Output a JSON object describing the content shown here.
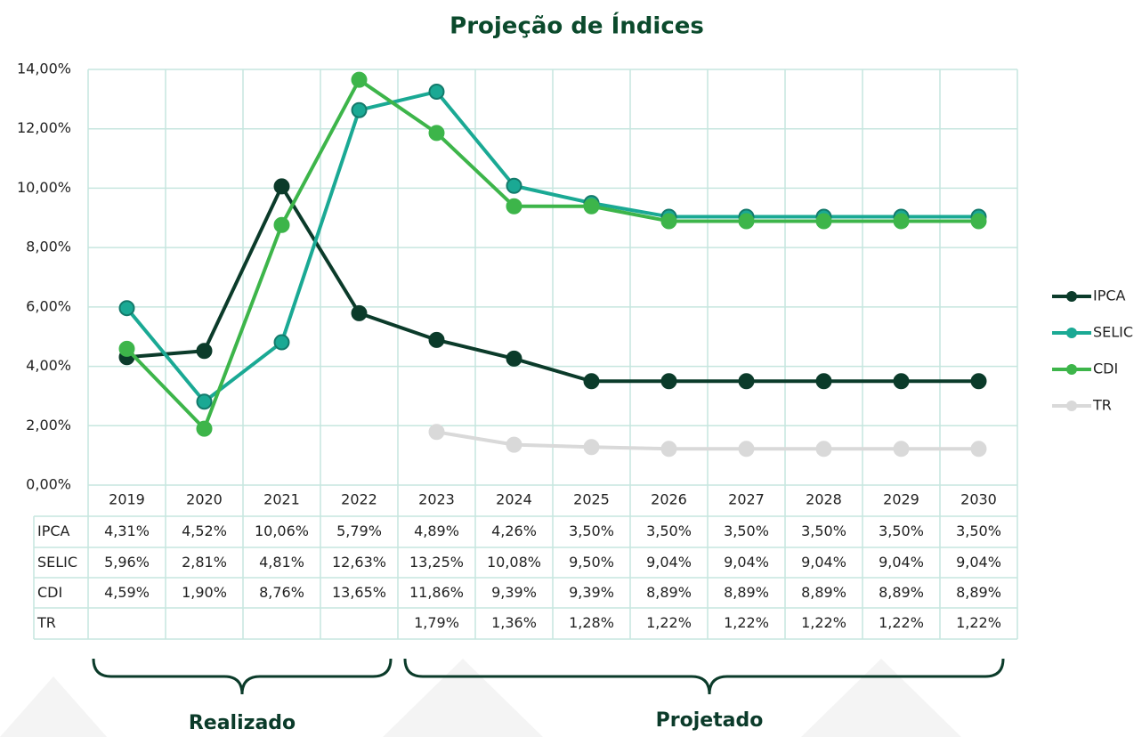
{
  "chart_data": {
    "type": "line",
    "title": "Projeção de Índices",
    "categories": [
      "2019",
      "2020",
      "2021",
      "2022",
      "2023",
      "2024",
      "2025",
      "2026",
      "2027",
      "2028",
      "2029",
      "2030"
    ],
    "series": [
      {
        "name": "IPCA",
        "color": "#0b3b2a",
        "values": [
          4.31,
          4.52,
          10.06,
          5.79,
          4.89,
          4.26,
          3.5,
          3.5,
          3.5,
          3.5,
          3.5,
          3.5
        ],
        "value_labels": [
          "4,31%",
          "4,52%",
          "10,06%",
          "5,79%",
          "4,89%",
          "4,26%",
          "3,50%",
          "3,50%",
          "3,50%",
          "3,50%",
          "3,50%",
          "3,50%"
        ]
      },
      {
        "name": "SELIC",
        "color": "#1aa994",
        "values": [
          5.96,
          2.81,
          4.81,
          12.63,
          13.25,
          10.08,
          9.5,
          9.04,
          9.04,
          9.04,
          9.04,
          9.04
        ],
        "value_labels": [
          "5,96%",
          "2,81%",
          "4,81%",
          "12,63%",
          "13,25%",
          "10,08%",
          "9,50%",
          "9,04%",
          "9,04%",
          "9,04%",
          "9,04%",
          "9,04%"
        ]
      },
      {
        "name": "CDI",
        "color": "#3db54a",
        "values": [
          4.59,
          1.9,
          8.76,
          13.65,
          11.86,
          9.39,
          9.39,
          8.89,
          8.89,
          8.89,
          8.89,
          8.89
        ],
        "value_labels": [
          "4,59%",
          "1,90%",
          "8,76%",
          "13,65%",
          "11,86%",
          "9,39%",
          "9,39%",
          "8,89%",
          "8,89%",
          "8,89%",
          "8,89%",
          "8,89%"
        ]
      },
      {
        "name": "TR",
        "color": "#d9d9d9",
        "values": [
          null,
          null,
          null,
          null,
          1.79,
          1.36,
          1.28,
          1.22,
          1.22,
          1.22,
          1.22,
          1.22
        ],
        "value_labels": [
          null,
          null,
          null,
          null,
          "1,79%",
          "1,36%",
          "1,28%",
          "1,22%",
          "1,22%",
          "1,22%",
          "1,22%",
          "1,22%"
        ]
      }
    ],
    "ylim": [
      0,
      14
    ],
    "yticks": [
      {
        "value": 0,
        "label": "0,00%"
      },
      {
        "value": 2,
        "label": "2,00%"
      },
      {
        "value": 4,
        "label": "4,00%"
      },
      {
        "value": 6,
        "label": "6,00%"
      },
      {
        "value": 8,
        "label": "8,00%"
      },
      {
        "value": 10,
        "label": "10,00%"
      },
      {
        "value": 12,
        "label": "12,00%"
      },
      {
        "value": 14,
        "label": "14,00%"
      }
    ],
    "grid": true,
    "legend": "right",
    "annotations": [
      "Realizado",
      "Projetado"
    ]
  }
}
